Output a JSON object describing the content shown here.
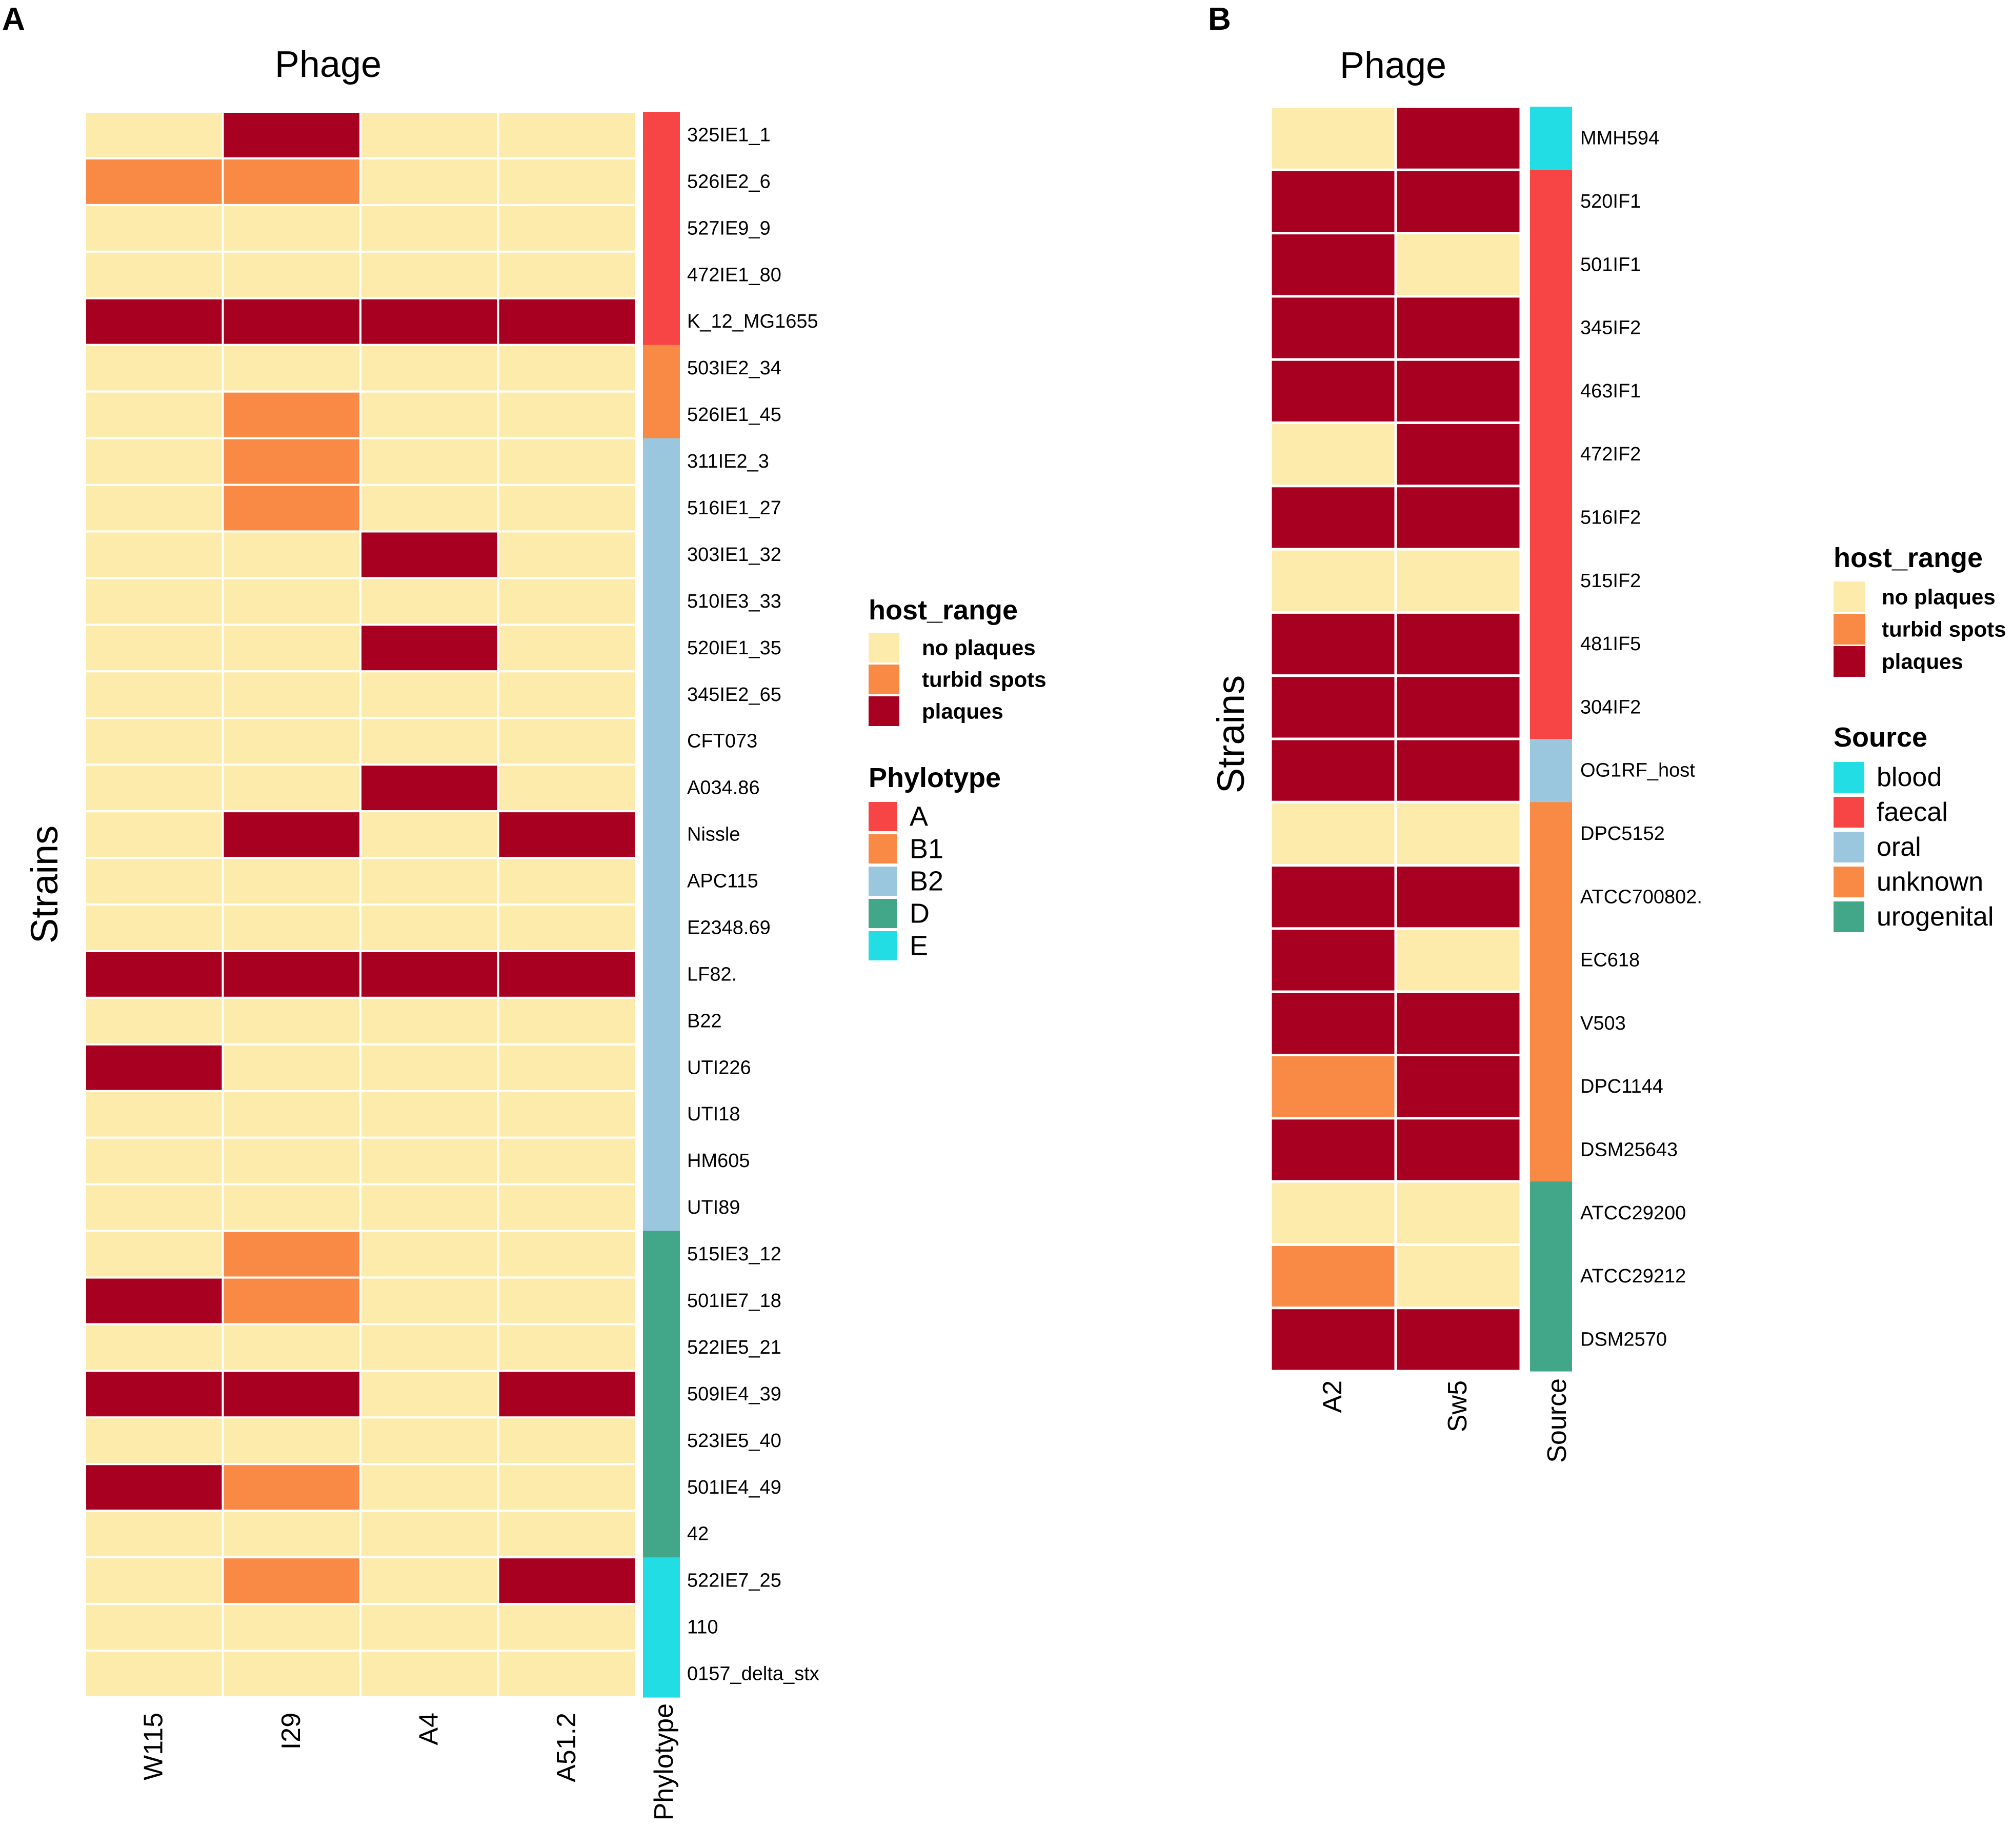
{
  "chart_data": [
    {
      "panel": "A",
      "type": "heatmap",
      "title": "Phage",
      "xlabel": "",
      "ylabel": "Strains",
      "columns": [
        "W115",
        "I29",
        "A4",
        "A51.2"
      ],
      "annotation_label": "Phylotype",
      "rows": [
        {
          "strain": "325IE1_1",
          "values": [
            "no plaques",
            "plaques",
            "no plaques",
            "no plaques"
          ],
          "group": "A"
        },
        {
          "strain": "526IE2_6",
          "values": [
            "turbid spots",
            "turbid spots",
            "no plaques",
            "no plaques"
          ],
          "group": "A"
        },
        {
          "strain": "527IE9_9",
          "values": [
            "no plaques",
            "no plaques",
            "no plaques",
            "no plaques"
          ],
          "group": "A"
        },
        {
          "strain": "472IE1_80",
          "values": [
            "no plaques",
            "no plaques",
            "no plaques",
            "no plaques"
          ],
          "group": "A"
        },
        {
          "strain": "K_12_MG1655",
          "values": [
            "plaques",
            "plaques",
            "plaques",
            "plaques"
          ],
          "group": "A"
        },
        {
          "strain": "503IE2_34",
          "values": [
            "no plaques",
            "no plaques",
            "no plaques",
            "no plaques"
          ],
          "group": "B1"
        },
        {
          "strain": "526IE1_45",
          "values": [
            "no plaques",
            "turbid spots",
            "no plaques",
            "no plaques"
          ],
          "group": "B1"
        },
        {
          "strain": "311IE2_3",
          "values": [
            "no plaques",
            "turbid spots",
            "no plaques",
            "no plaques"
          ],
          "group": "B2"
        },
        {
          "strain": "516IE1_27",
          "values": [
            "no plaques",
            "turbid spots",
            "no plaques",
            "no plaques"
          ],
          "group": "B2"
        },
        {
          "strain": "303IE1_32",
          "values": [
            "no plaques",
            "no plaques",
            "plaques",
            "no plaques"
          ],
          "group": "B2"
        },
        {
          "strain": "510IE3_33",
          "values": [
            "no plaques",
            "no plaques",
            "no plaques",
            "no plaques"
          ],
          "group": "B2"
        },
        {
          "strain": "520IE1_35",
          "values": [
            "no plaques",
            "no plaques",
            "plaques",
            "no plaques"
          ],
          "group": "B2"
        },
        {
          "strain": "345IE2_65",
          "values": [
            "no plaques",
            "no plaques",
            "no plaques",
            "no plaques"
          ],
          "group": "B2"
        },
        {
          "strain": "CFT073",
          "values": [
            "no plaques",
            "no plaques",
            "no plaques",
            "no plaques"
          ],
          "group": "B2"
        },
        {
          "strain": "A034.86",
          "values": [
            "no plaques",
            "no plaques",
            "plaques",
            "no plaques"
          ],
          "group": "B2"
        },
        {
          "strain": "Nissle",
          "values": [
            "no plaques",
            "plaques",
            "no plaques",
            "plaques"
          ],
          "group": "B2"
        },
        {
          "strain": "APC115",
          "values": [
            "no plaques",
            "no plaques",
            "no plaques",
            "no plaques"
          ],
          "group": "B2"
        },
        {
          "strain": "E2348.69",
          "values": [
            "no plaques",
            "no plaques",
            "no plaques",
            "no plaques"
          ],
          "group": "B2"
        },
        {
          "strain": "LF82.",
          "values": [
            "plaques",
            "plaques",
            "plaques",
            "plaques"
          ],
          "group": "B2"
        },
        {
          "strain": "B22",
          "values": [
            "no plaques",
            "no plaques",
            "no plaques",
            "no plaques"
          ],
          "group": "B2"
        },
        {
          "strain": "UTI226",
          "values": [
            "plaques",
            "no plaques",
            "no plaques",
            "no plaques"
          ],
          "group": "B2"
        },
        {
          "strain": "UTI18",
          "values": [
            "no plaques",
            "no plaques",
            "no plaques",
            "no plaques"
          ],
          "group": "B2"
        },
        {
          "strain": "HM605",
          "values": [
            "no plaques",
            "no plaques",
            "no plaques",
            "no plaques"
          ],
          "group": "B2"
        },
        {
          "strain": "UTI89",
          "values": [
            "no plaques",
            "no plaques",
            "no plaques",
            "no plaques"
          ],
          "group": "B2"
        },
        {
          "strain": "515IE3_12",
          "values": [
            "no plaques",
            "turbid spots",
            "no plaques",
            "no plaques"
          ],
          "group": "D"
        },
        {
          "strain": "501IE7_18",
          "values": [
            "plaques",
            "turbid spots",
            "no plaques",
            "no plaques"
          ],
          "group": "D"
        },
        {
          "strain": "522IE5_21",
          "values": [
            "no plaques",
            "no plaques",
            "no plaques",
            "no plaques"
          ],
          "group": "D"
        },
        {
          "strain": "509IE4_39",
          "values": [
            "plaques",
            "plaques",
            "no plaques",
            "plaques"
          ],
          "group": "D"
        },
        {
          "strain": "523IE5_40",
          "values": [
            "no plaques",
            "no plaques",
            "no plaques",
            "no plaques"
          ],
          "group": "D"
        },
        {
          "strain": "501IE4_49",
          "values": [
            "plaques",
            "turbid spots",
            "no plaques",
            "no plaques"
          ],
          "group": "D"
        },
        {
          "strain": "42",
          "values": [
            "no plaques",
            "no plaques",
            "no plaques",
            "no plaques"
          ],
          "group": "D"
        },
        {
          "strain": "522IE7_25",
          "values": [
            "no plaques",
            "turbid spots",
            "no plaques",
            "plaques"
          ],
          "group": "E"
        },
        {
          "strain": "110",
          "values": [
            "no plaques",
            "no plaques",
            "no plaques",
            "no plaques"
          ],
          "group": "E"
        },
        {
          "strain": "0157_delta_stx",
          "values": [
            "no plaques",
            "no plaques",
            "no plaques",
            "no plaques"
          ],
          "group": "E"
        }
      ],
      "legend_host_range": {
        "title": "host_range",
        "items": [
          {
            "label": "no plaques",
            "color": "#FCEBAA"
          },
          {
            "label": "turbid spots",
            "color": "#F88A45"
          },
          {
            "label": "plaques",
            "color": "#A80020"
          }
        ]
      },
      "legend_group": {
        "title": "Phylotype",
        "items": [
          {
            "label": "A",
            "color": "#F74545"
          },
          {
            "label": "B1",
            "color": "#F88A45"
          },
          {
            "label": "B2",
            "color": "#9AC7DE"
          },
          {
            "label": "D",
            "color": "#42A789"
          },
          {
            "label": "E",
            "color": "#22DDE3"
          }
        ]
      }
    },
    {
      "panel": "B",
      "type": "heatmap",
      "title": "Phage",
      "xlabel": "",
      "ylabel": "Strains",
      "columns": [
        "A2",
        "Sw5"
      ],
      "annotation_label": "Source",
      "rows": [
        {
          "strain": "MMH594",
          "values": [
            "no plaques",
            "plaques"
          ],
          "group": "blood"
        },
        {
          "strain": "520IF1",
          "values": [
            "plaques",
            "plaques"
          ],
          "group": "faecal"
        },
        {
          "strain": "501IF1",
          "values": [
            "plaques",
            "no plaques"
          ],
          "group": "faecal"
        },
        {
          "strain": "345IF2",
          "values": [
            "plaques",
            "plaques"
          ],
          "group": "faecal"
        },
        {
          "strain": "463IF1",
          "values": [
            "plaques",
            "plaques"
          ],
          "group": "faecal"
        },
        {
          "strain": "472IF2",
          "values": [
            "no plaques",
            "plaques"
          ],
          "group": "faecal"
        },
        {
          "strain": "516IF2",
          "values": [
            "plaques",
            "plaques"
          ],
          "group": "faecal"
        },
        {
          "strain": "515IF2",
          "values": [
            "no plaques",
            "no plaques"
          ],
          "group": "faecal"
        },
        {
          "strain": "481IF5",
          "values": [
            "plaques",
            "plaques"
          ],
          "group": "faecal"
        },
        {
          "strain": "304IF2",
          "values": [
            "plaques",
            "plaques"
          ],
          "group": "faecal"
        },
        {
          "strain": "OG1RF_host",
          "values": [
            "plaques",
            "plaques"
          ],
          "group": "oral"
        },
        {
          "strain": "DPC5152",
          "values": [
            "no plaques",
            "no plaques"
          ],
          "group": "unknown"
        },
        {
          "strain": "ATCC700802.",
          "values": [
            "plaques",
            "plaques"
          ],
          "group": "unknown"
        },
        {
          "strain": "EC618",
          "values": [
            "plaques",
            "no plaques"
          ],
          "group": "unknown"
        },
        {
          "strain": "V503",
          "values": [
            "plaques",
            "plaques"
          ],
          "group": "unknown"
        },
        {
          "strain": "DPC1144",
          "values": [
            "turbid spots",
            "plaques"
          ],
          "group": "unknown"
        },
        {
          "strain": "DSM25643",
          "values": [
            "plaques",
            "plaques"
          ],
          "group": "unknown"
        },
        {
          "strain": "ATCC29200",
          "values": [
            "no plaques",
            "no plaques"
          ],
          "group": "urogenital"
        },
        {
          "strain": "ATCC29212",
          "values": [
            "turbid spots",
            "no plaques"
          ],
          "group": "urogenital"
        },
        {
          "strain": "DSM2570",
          "values": [
            "plaques",
            "plaques"
          ],
          "group": "urogenital"
        }
      ],
      "legend_host_range": {
        "title": "host_range",
        "items": [
          {
            "label": "no plaques",
            "color": "#FCEBAA"
          },
          {
            "label": "turbid spots",
            "color": "#F88A45"
          },
          {
            "label": "plaques",
            "color": "#A80020"
          }
        ]
      },
      "legend_group": {
        "title": "Source",
        "items": [
          {
            "label": "blood",
            "color": "#22DDE3"
          },
          {
            "label": "faecal",
            "color": "#F74545"
          },
          {
            "label": "oral",
            "color": "#9AC7DE"
          },
          {
            "label": "unknown",
            "color": "#F88A45"
          },
          {
            "label": "urogenital",
            "color": "#42A789"
          }
        ]
      }
    }
  ]
}
